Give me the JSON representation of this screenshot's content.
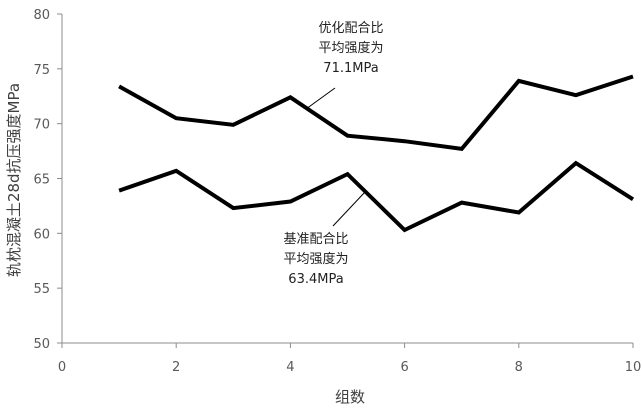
{
  "chart_data": {
    "type": "line",
    "title": "",
    "xlabel": "组数",
    "ylabel": "轨枕混凝土28d抗压强度MPa",
    "xlim": [
      0,
      10
    ],
    "ylim": [
      50,
      80
    ],
    "x_ticks": [
      0,
      2,
      4,
      6,
      8,
      10
    ],
    "y_ticks": [
      50,
      55,
      60,
      65,
      70,
      75,
      80
    ],
    "grid": false,
    "legend": "none",
    "x": [
      1,
      2,
      3,
      4,
      5,
      6,
      7,
      8,
      9,
      10
    ],
    "series": [
      {
        "values": [
          73.4,
          70.5,
          69.9,
          72.4,
          68.9,
          68.4,
          67.7,
          73.9,
          72.6,
          74.3
        ]
      },
      {
        "values": [
          63.9,
          65.7,
          62.3,
          62.9,
          65.4,
          60.3,
          62.8,
          61.9,
          66.4,
          63.1
        ]
      }
    ],
    "annotations": [
      {
        "lines": [
          "优化配合比",
          "平均强度为",
          "71.1MPa"
        ]
      },
      {
        "lines": [
          "基准配合比",
          "平均强度为",
          "63.4MPa"
        ]
      }
    ],
    "line_color": "#000000",
    "axis_color": "#8c8c8c"
  }
}
